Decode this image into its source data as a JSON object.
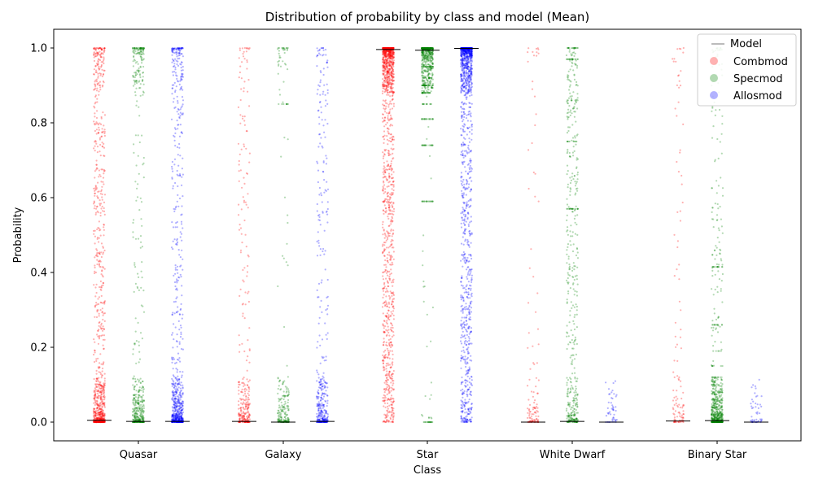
{
  "chart_data": {
    "type": "scatter",
    "subtype": "strip-plot",
    "title": "Distribution of probability by class and model (Mean)",
    "xlabel": "Class",
    "ylabel": "Probability",
    "categories": [
      "Quasar",
      "Galaxy",
      "Star",
      "White Dwarf",
      "Binary Star"
    ],
    "ylim": [
      -0.05,
      1.05
    ],
    "yticks": [
      "0.0",
      "0.2",
      "0.4",
      "0.6",
      "0.8",
      "1.0"
    ],
    "grid": false,
    "legend": {
      "title": "Model",
      "placement": "top-right",
      "entries": [
        "Combmod",
        "Specmod",
        "Allosmod"
      ]
    },
    "series": [
      {
        "name": "Combmod",
        "color": "#ff0000",
        "means": [
          0.005,
          0.002,
          0.996,
          0.0,
          0.003
        ]
      },
      {
        "name": "Specmod",
        "color": "#008000",
        "means": [
          0.002,
          0.0,
          0.994,
          0.002,
          0.004
        ]
      },
      {
        "name": "Allosmod",
        "color": "#0000ff",
        "means": [
          0.002,
          0.002,
          0.999,
          0.0,
          0.0
        ]
      }
    ],
    "mean_line_color": "#000000"
  }
}
